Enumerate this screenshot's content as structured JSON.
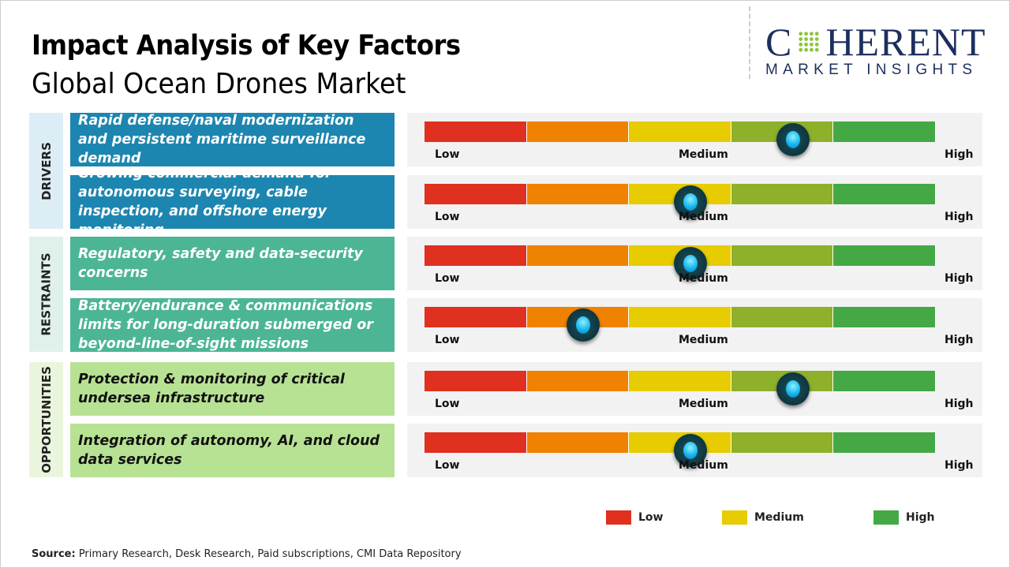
{
  "header": {
    "title": "Impact Analysis of Key Factors",
    "subtitle": "Global Ocean Drones Market"
  },
  "logo": {
    "main_pre": "C",
    "main_post": "HERENT",
    "sub": "MARKET INSIGHTS"
  },
  "scale_labels": {
    "low": "Low",
    "medium": "Medium",
    "high": "High"
  },
  "colors": {
    "segments": [
      "#e03020",
      "#ef8200",
      "#e6cc00",
      "#8fb02a",
      "#44a845"
    ],
    "drivers": "#1d86b0",
    "restraints": "#4cb596",
    "opportunities": "#b8e293"
  },
  "categories": [
    {
      "label": "DRIVERS",
      "bg": "#dcedf5"
    },
    {
      "label": "RESTRAINTS",
      "bg": "#dff1ea"
    },
    {
      "label": "OPPORTUNITIES",
      "bg": "#eaf5dd"
    }
  ],
  "chart_data": {
    "type": "gauge",
    "scale": [
      "Low",
      "Medium",
      "High"
    ],
    "factors": [
      {
        "category": "Drivers",
        "text": "Rapid defense/naval modernization and persistent maritime surveillance demand",
        "impact": 0.72
      },
      {
        "category": "Drivers",
        "text": "Growing commercial demand for autonomous surveying, cable inspection, and offshore energy monitoring",
        "impact": 0.52
      },
      {
        "category": "Restraints",
        "text": "Regulatory, safety and data-security concerns",
        "impact": 0.52
      },
      {
        "category": "Restraints",
        "text": "Battery/endurance & communications limits for long-duration submerged or beyond-line-of-sight missions",
        "impact": 0.31
      },
      {
        "category": "Opportunities",
        "text": "Protection & monitoring of critical undersea infrastructure",
        "impact": 0.72
      },
      {
        "category": "Opportunities",
        "text": "Integration of autonomy, AI, and cloud data services",
        "impact": 0.52
      }
    ],
    "legend": [
      {
        "label": "Low",
        "color": "#e03020"
      },
      {
        "label": "Medium",
        "color": "#e6cc00"
      },
      {
        "label": "High",
        "color": "#44a845"
      }
    ]
  },
  "source": {
    "label": "Source:",
    "text": " Primary Research, Desk Research, Paid subscriptions, CMI Data Repository"
  }
}
